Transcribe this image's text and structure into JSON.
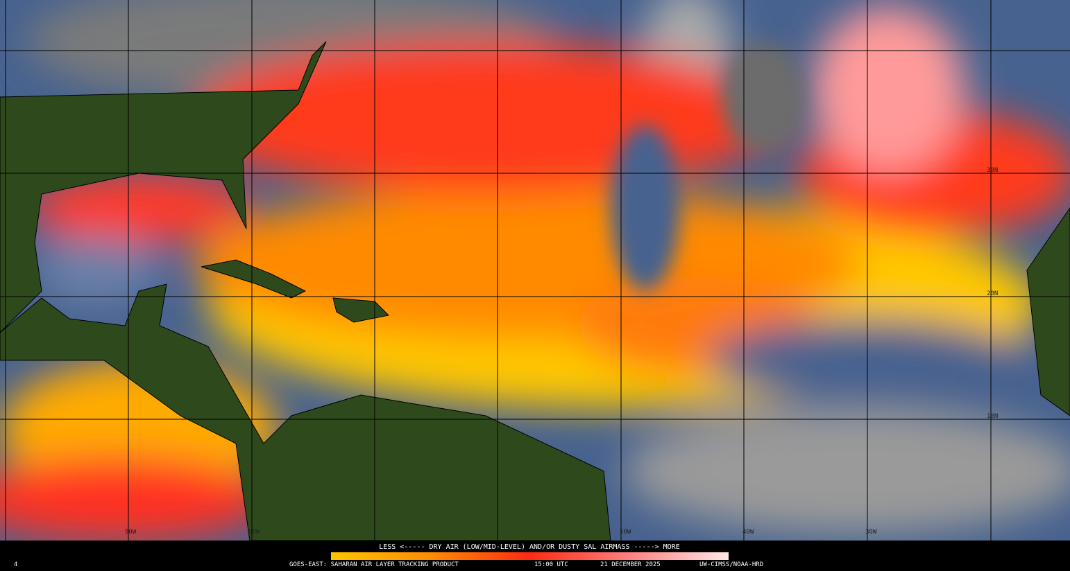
{
  "map": {
    "lat_labels": [
      "30N",
      "20N",
      "10N"
    ],
    "lon_labels": [
      "90W",
      "80W",
      "50W",
      "40W",
      "30W"
    ]
  },
  "legend": {
    "caption": "LESS <----- DRY AIR (LOW/MID-LEVEL) AND/OR DUSTY SAL AIRMASS -----> MORE",
    "frame": "4",
    "product": "GOES-EAST: SAHARAN AIR LAYER TRACKING PRODUCT",
    "time": "15:00 UTC",
    "date": "21 DECEMBER 2025",
    "credit": "UW-CIMSS/NOAA-HRD"
  }
}
